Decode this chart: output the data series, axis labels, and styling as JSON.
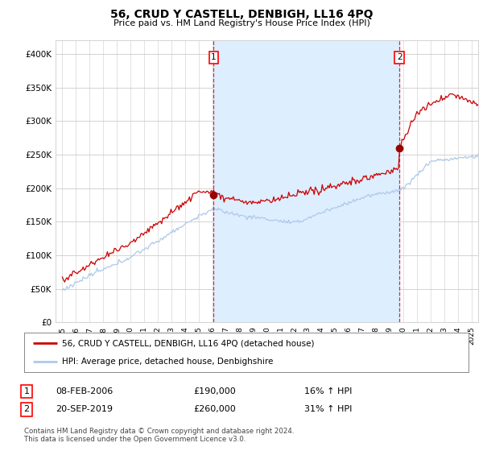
{
  "title": "56, CRUD Y CASTELL, DENBIGH, LL16 4PQ",
  "subtitle": "Price paid vs. HM Land Registry's House Price Index (HPI)",
  "ylabel_ticks": [
    "£0",
    "£50K",
    "£100K",
    "£150K",
    "£200K",
    "£250K",
    "£300K",
    "£350K",
    "£400K"
  ],
  "ytick_values": [
    0,
    50000,
    100000,
    150000,
    200000,
    250000,
    300000,
    350000,
    400000
  ],
  "ylim": [
    0,
    420000
  ],
  "xlim_start": 1994.5,
  "xlim_end": 2025.5,
  "hpi_color": "#aec9e8",
  "price_color": "#cc0000",
  "fill_color": "#ddeeff",
  "marker1_x": 2006.1,
  "marker1_y": 190000,
  "marker2_x": 2019.72,
  "marker2_y": 260000,
  "legend_label1": "56, CRUD Y CASTELL, DENBIGH, LL16 4PQ (detached house)",
  "legend_label2": "HPI: Average price, detached house, Denbighshire",
  "table_row1": [
    "1",
    "08-FEB-2006",
    "£190,000",
    "16% ↑ HPI"
  ],
  "table_row2": [
    "2",
    "20-SEP-2019",
    "£260,000",
    "31% ↑ HPI"
  ],
  "footnote": "Contains HM Land Registry data © Crown copyright and database right 2024.\nThis data is licensed under the Open Government Licence v3.0.",
  "background_color": "#ffffff",
  "grid_color": "#cccccc"
}
